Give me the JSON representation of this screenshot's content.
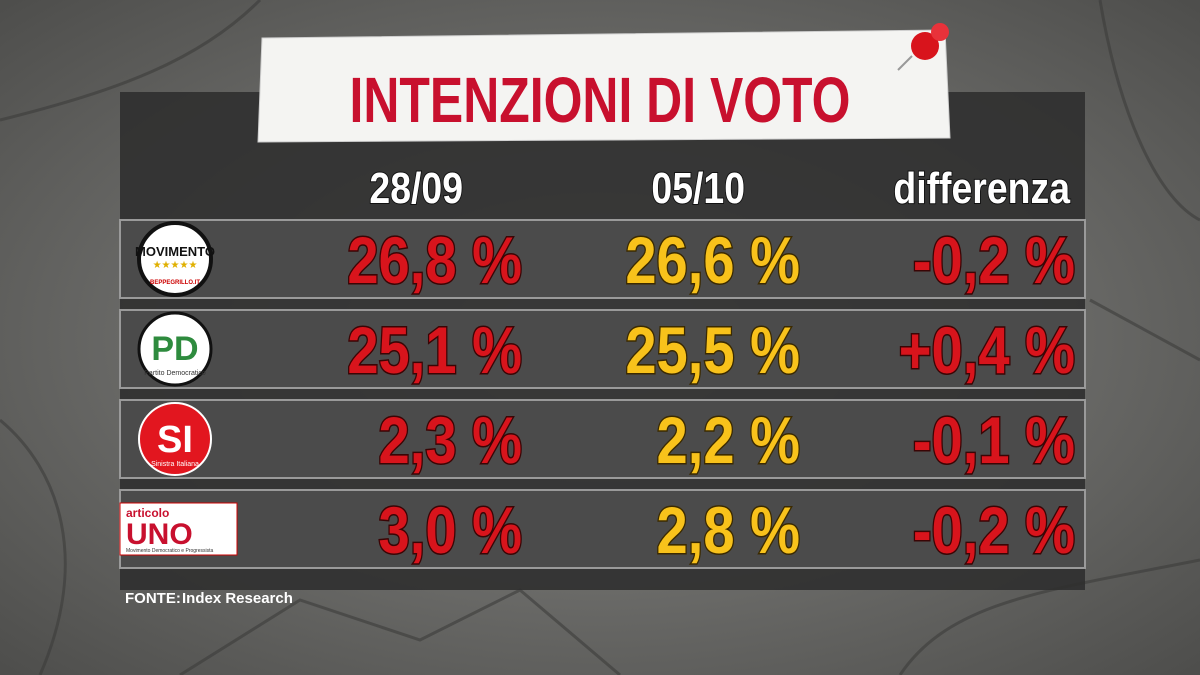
{
  "title": "INTENZIONI DI VOTO",
  "table": {
    "headers": [
      "28/09",
      "05/10",
      "differenza"
    ],
    "rows": [
      {
        "logo": "MOVIMENTO",
        "caption": "BEPPEGRILLO.IT",
        "cells": [
          "26,8 %",
          "26,6 %",
          "-0,2 %"
        ]
      },
      {
        "logo": "PD",
        "caption": "Partito Democratico",
        "cells": [
          "25,1 %",
          "25,5 %",
          "+0,4 %"
        ]
      },
      {
        "logo": "SI",
        "caption": "Sinistra Italiana",
        "cells": [
          "2,3 %",
          "2,2 %",
          "-0,1 %"
        ]
      },
      {
        "overline": "articolo",
        "logo": "UNO",
        "caption": "Movimento Democratico e Progressista",
        "cells": [
          "3,0 %",
          "2,8 %",
          "-0,2 %"
        ]
      }
    ]
  },
  "source": {
    "label": "FONTE:",
    "text": "Index Research"
  }
}
